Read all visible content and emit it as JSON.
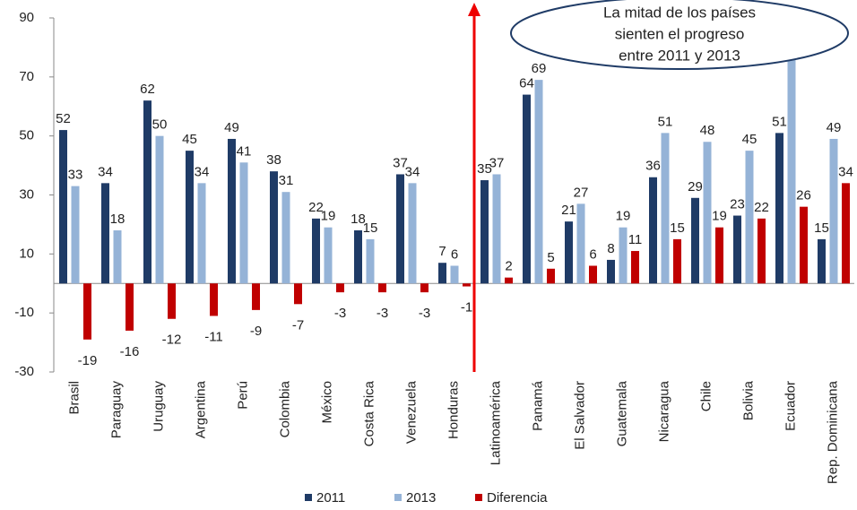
{
  "chart_data": {
    "type": "bar",
    "categories": [
      "Brasil",
      "Paraguay",
      "Uruguay",
      "Argentina",
      "Perú",
      "Colombia",
      "México",
      "Costa Rica",
      "Venezuela",
      "Honduras",
      "Latinoamérica",
      "Panamá",
      "El Salvador",
      "Guatemala",
      "Nicaragua",
      "Chile",
      "Bolivia",
      "Ecuador",
      "Rep. Dominicana"
    ],
    "series": [
      {
        "name": "2011",
        "color": "#1f3b66",
        "values": [
          52,
          34,
          62,
          45,
          49,
          38,
          22,
          18,
          37,
          7,
          35,
          64,
          21,
          8,
          36,
          29,
          23,
          51,
          15
        ]
      },
      {
        "name": "2013",
        "color": "#95b3d7",
        "values": [
          33,
          18,
          50,
          34,
          41,
          31,
          19,
          15,
          34,
          6,
          37,
          69,
          27,
          19,
          51,
          48,
          45,
          77,
          49
        ]
      },
      {
        "name": "Diferencia",
        "color": "#c00000",
        "values": [
          -19,
          -16,
          -12,
          -11,
          -9,
          -7,
          -3,
          -3,
          -3,
          -1,
          2,
          5,
          6,
          11,
          15,
          19,
          22,
          26,
          34
        ]
      }
    ],
    "ylim": [
      -30,
      90
    ],
    "yticks": [
      -30,
      -10,
      10,
      30,
      50,
      70,
      90
    ],
    "annotation": [
      "La mitad de los países",
      "sienten el progreso",
      "entre 2011 y 2013"
    ]
  }
}
